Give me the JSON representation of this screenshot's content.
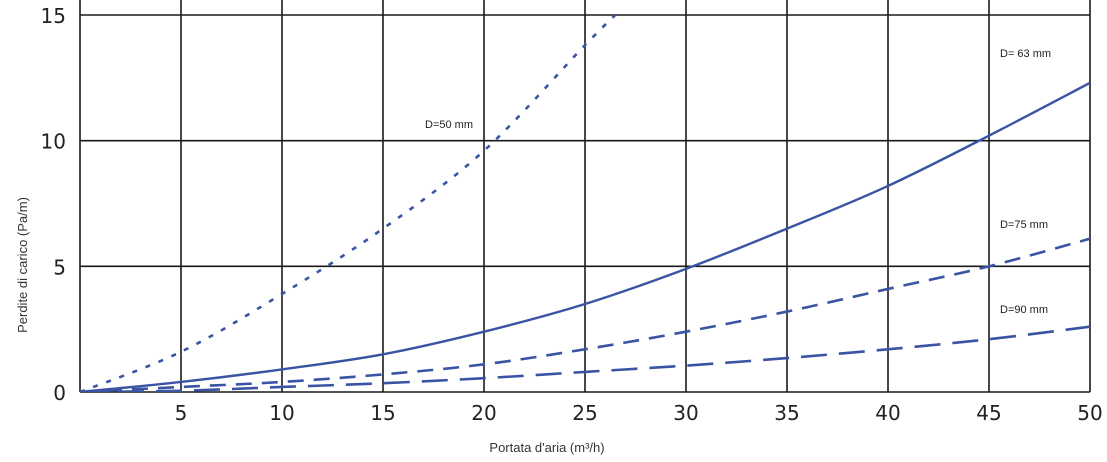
{
  "chart_data": {
    "type": "line",
    "title": "",
    "xlabel": "Portata d'aria  (m³/h)",
    "ylabel": "Perdite di carico (Pa/m)",
    "xlim": [
      0,
      50
    ],
    "ylim": [
      0,
      15
    ],
    "x_ticks": [
      5,
      10,
      15,
      20,
      25,
      30,
      35,
      40,
      45,
      50
    ],
    "x_tick_labels": [
      "5",
      "10",
      "15",
      "20",
      "25",
      "30",
      "35",
      "40",
      "45",
      "50"
    ],
    "y_ticks": [
      0,
      5,
      10,
      15
    ],
    "y_tick_labels": [
      "0",
      "5",
      "10",
      "15"
    ],
    "grid": true,
    "line_color": "#3a54a4",
    "series": [
      {
        "name": "D=50 mm",
        "style": "dotted",
        "x": [
          0,
          5,
          10,
          15,
          20,
          25,
          26.5
        ],
        "y": [
          0,
          1.6,
          3.9,
          6.5,
          9.6,
          13.8,
          15
        ]
      },
      {
        "name": "D= 63 mm",
        "style": "solid",
        "x": [
          0,
          5,
          10,
          15,
          20,
          25,
          30,
          35,
          40,
          45,
          50
        ],
        "y": [
          0,
          0.4,
          0.9,
          1.5,
          2.4,
          3.5,
          4.9,
          6.5,
          8.2,
          10.2,
          12.3
        ]
      },
      {
        "name": "D=75 mm",
        "style": "dashed",
        "x": [
          0,
          5,
          10,
          15,
          20,
          25,
          30,
          35,
          40,
          45,
          50
        ],
        "y": [
          0,
          0.2,
          0.4,
          0.7,
          1.1,
          1.7,
          2.4,
          3.2,
          4.1,
          5.0,
          6.1
        ]
      },
      {
        "name": "D=90 mm",
        "style": "longdash",
        "x": [
          0,
          5,
          10,
          15,
          20,
          25,
          30,
          35,
          40,
          45,
          50
        ],
        "y": [
          0,
          0.05,
          0.2,
          0.35,
          0.55,
          0.8,
          1.05,
          1.35,
          1.7,
          2.1,
          2.6
        ]
      }
    ]
  }
}
